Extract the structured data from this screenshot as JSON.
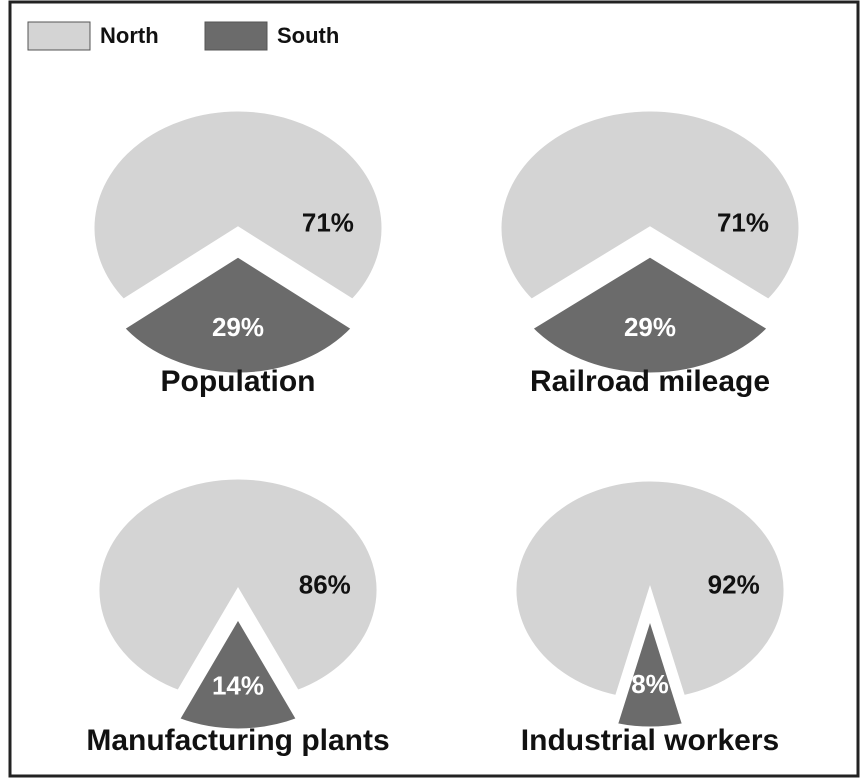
{
  "legend": [
    {
      "name": "North",
      "color": "#d4d4d4"
    },
    {
      "name": "South",
      "color": "#6b6b6b"
    }
  ],
  "chart_data": [
    {
      "type": "pie",
      "title": "Population",
      "values": [
        71,
        29
      ],
      "value_labels": [
        "71%",
        "29%"
      ]
    },
    {
      "type": "pie",
      "title": "Railroad mileage",
      "values": [
        71,
        29
      ],
      "value_labels": [
        "71%",
        "29%"
      ]
    },
    {
      "type": "pie",
      "title": "Manufacturing plants",
      "values": [
        86,
        14
      ],
      "value_labels": [
        "86%",
        "14%"
      ]
    },
    {
      "type": "pie",
      "title": "Industrial workers",
      "values": [
        92,
        8
      ],
      "value_labels": [
        "92%",
        "8%"
      ]
    }
  ]
}
